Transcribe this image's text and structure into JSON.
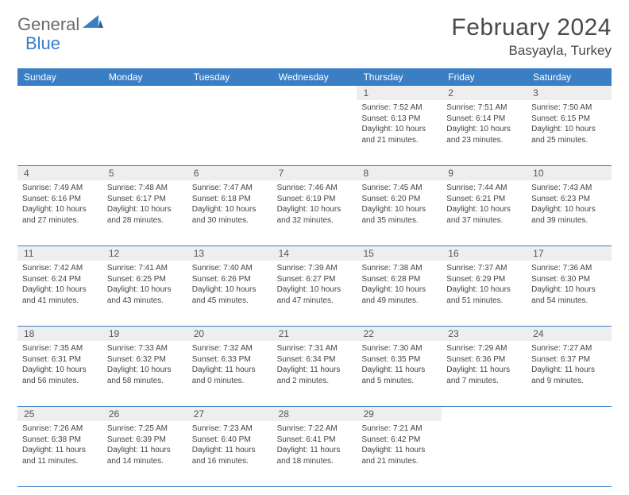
{
  "brand": {
    "text1": "General",
    "text2": "Blue",
    "logo_color": "#3a7fc4"
  },
  "title": "February 2024",
  "location": "Basyayla, Turkey",
  "colors": {
    "header_bg": "#3a7fc4",
    "header_text": "#ffffff",
    "daynum_bg": "#eeeeee",
    "border": "#3a7fc4",
    "text": "#444444",
    "title_text": "#4a4a4a"
  },
  "day_names": [
    "Sunday",
    "Monday",
    "Tuesday",
    "Wednesday",
    "Thursday",
    "Friday",
    "Saturday"
  ],
  "weeks": [
    [
      {
        "n": "",
        "empty": true
      },
      {
        "n": "",
        "empty": true
      },
      {
        "n": "",
        "empty": true
      },
      {
        "n": "",
        "empty": true
      },
      {
        "n": "1",
        "sr": "Sunrise: 7:52 AM",
        "ss": "Sunset: 6:13 PM",
        "dl1": "Daylight: 10 hours",
        "dl2": "and 21 minutes."
      },
      {
        "n": "2",
        "sr": "Sunrise: 7:51 AM",
        "ss": "Sunset: 6:14 PM",
        "dl1": "Daylight: 10 hours",
        "dl2": "and 23 minutes."
      },
      {
        "n": "3",
        "sr": "Sunrise: 7:50 AM",
        "ss": "Sunset: 6:15 PM",
        "dl1": "Daylight: 10 hours",
        "dl2": "and 25 minutes."
      }
    ],
    [
      {
        "n": "4",
        "sr": "Sunrise: 7:49 AM",
        "ss": "Sunset: 6:16 PM",
        "dl1": "Daylight: 10 hours",
        "dl2": "and 27 minutes."
      },
      {
        "n": "5",
        "sr": "Sunrise: 7:48 AM",
        "ss": "Sunset: 6:17 PM",
        "dl1": "Daylight: 10 hours",
        "dl2": "and 28 minutes."
      },
      {
        "n": "6",
        "sr": "Sunrise: 7:47 AM",
        "ss": "Sunset: 6:18 PM",
        "dl1": "Daylight: 10 hours",
        "dl2": "and 30 minutes."
      },
      {
        "n": "7",
        "sr": "Sunrise: 7:46 AM",
        "ss": "Sunset: 6:19 PM",
        "dl1": "Daylight: 10 hours",
        "dl2": "and 32 minutes."
      },
      {
        "n": "8",
        "sr": "Sunrise: 7:45 AM",
        "ss": "Sunset: 6:20 PM",
        "dl1": "Daylight: 10 hours",
        "dl2": "and 35 minutes."
      },
      {
        "n": "9",
        "sr": "Sunrise: 7:44 AM",
        "ss": "Sunset: 6:21 PM",
        "dl1": "Daylight: 10 hours",
        "dl2": "and 37 minutes."
      },
      {
        "n": "10",
        "sr": "Sunrise: 7:43 AM",
        "ss": "Sunset: 6:23 PM",
        "dl1": "Daylight: 10 hours",
        "dl2": "and 39 minutes."
      }
    ],
    [
      {
        "n": "11",
        "sr": "Sunrise: 7:42 AM",
        "ss": "Sunset: 6:24 PM",
        "dl1": "Daylight: 10 hours",
        "dl2": "and 41 minutes."
      },
      {
        "n": "12",
        "sr": "Sunrise: 7:41 AM",
        "ss": "Sunset: 6:25 PM",
        "dl1": "Daylight: 10 hours",
        "dl2": "and 43 minutes."
      },
      {
        "n": "13",
        "sr": "Sunrise: 7:40 AM",
        "ss": "Sunset: 6:26 PM",
        "dl1": "Daylight: 10 hours",
        "dl2": "and 45 minutes."
      },
      {
        "n": "14",
        "sr": "Sunrise: 7:39 AM",
        "ss": "Sunset: 6:27 PM",
        "dl1": "Daylight: 10 hours",
        "dl2": "and 47 minutes."
      },
      {
        "n": "15",
        "sr": "Sunrise: 7:38 AM",
        "ss": "Sunset: 6:28 PM",
        "dl1": "Daylight: 10 hours",
        "dl2": "and 49 minutes."
      },
      {
        "n": "16",
        "sr": "Sunrise: 7:37 AM",
        "ss": "Sunset: 6:29 PM",
        "dl1": "Daylight: 10 hours",
        "dl2": "and 51 minutes."
      },
      {
        "n": "17",
        "sr": "Sunrise: 7:36 AM",
        "ss": "Sunset: 6:30 PM",
        "dl1": "Daylight: 10 hours",
        "dl2": "and 54 minutes."
      }
    ],
    [
      {
        "n": "18",
        "sr": "Sunrise: 7:35 AM",
        "ss": "Sunset: 6:31 PM",
        "dl1": "Daylight: 10 hours",
        "dl2": "and 56 minutes."
      },
      {
        "n": "19",
        "sr": "Sunrise: 7:33 AM",
        "ss": "Sunset: 6:32 PM",
        "dl1": "Daylight: 10 hours",
        "dl2": "and 58 minutes."
      },
      {
        "n": "20",
        "sr": "Sunrise: 7:32 AM",
        "ss": "Sunset: 6:33 PM",
        "dl1": "Daylight: 11 hours",
        "dl2": "and 0 minutes."
      },
      {
        "n": "21",
        "sr": "Sunrise: 7:31 AM",
        "ss": "Sunset: 6:34 PM",
        "dl1": "Daylight: 11 hours",
        "dl2": "and 2 minutes."
      },
      {
        "n": "22",
        "sr": "Sunrise: 7:30 AM",
        "ss": "Sunset: 6:35 PM",
        "dl1": "Daylight: 11 hours",
        "dl2": "and 5 minutes."
      },
      {
        "n": "23",
        "sr": "Sunrise: 7:29 AM",
        "ss": "Sunset: 6:36 PM",
        "dl1": "Daylight: 11 hours",
        "dl2": "and 7 minutes."
      },
      {
        "n": "24",
        "sr": "Sunrise: 7:27 AM",
        "ss": "Sunset: 6:37 PM",
        "dl1": "Daylight: 11 hours",
        "dl2": "and 9 minutes."
      }
    ],
    [
      {
        "n": "25",
        "sr": "Sunrise: 7:26 AM",
        "ss": "Sunset: 6:38 PM",
        "dl1": "Daylight: 11 hours",
        "dl2": "and 11 minutes."
      },
      {
        "n": "26",
        "sr": "Sunrise: 7:25 AM",
        "ss": "Sunset: 6:39 PM",
        "dl1": "Daylight: 11 hours",
        "dl2": "and 14 minutes."
      },
      {
        "n": "27",
        "sr": "Sunrise: 7:23 AM",
        "ss": "Sunset: 6:40 PM",
        "dl1": "Daylight: 11 hours",
        "dl2": "and 16 minutes."
      },
      {
        "n": "28",
        "sr": "Sunrise: 7:22 AM",
        "ss": "Sunset: 6:41 PM",
        "dl1": "Daylight: 11 hours",
        "dl2": "and 18 minutes."
      },
      {
        "n": "29",
        "sr": "Sunrise: 7:21 AM",
        "ss": "Sunset: 6:42 PM",
        "dl1": "Daylight: 11 hours",
        "dl2": "and 21 minutes."
      },
      {
        "n": "",
        "empty": true
      },
      {
        "n": "",
        "empty": true
      }
    ]
  ]
}
